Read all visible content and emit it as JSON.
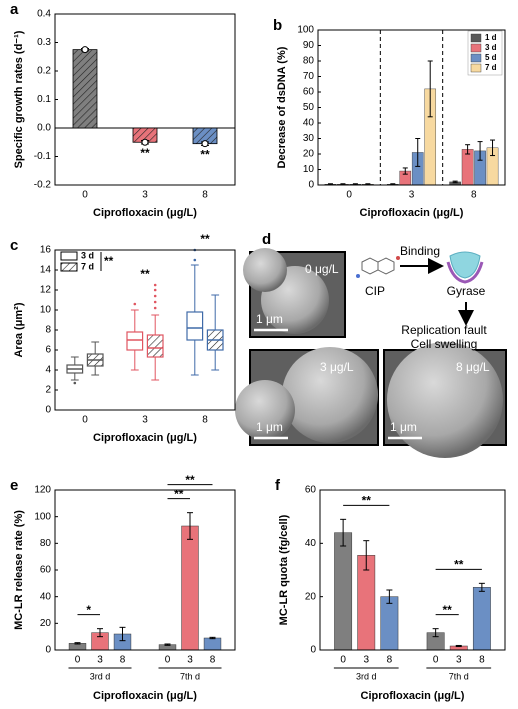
{
  "chart_data": [
    {
      "type": "bar",
      "panel": "a",
      "xlabel": "Ciprofloxacin (μg/L)",
      "ylabel": "Specific growth rates (d⁻¹)",
      "categories": [
        "0",
        "3",
        "8"
      ],
      "values": [
        0.275,
        -0.05,
        -0.055
      ],
      "errors": [
        0.004,
        0.006,
        0.006
      ],
      "colors": [
        "#7f7f7f",
        "#e8737a",
        "#6b8fc4"
      ],
      "hatch": true,
      "ylim": [
        -0.2,
        0.4
      ],
      "yticks": [
        -0.2,
        -0.1,
        {
          "value": 0,
          "label": "0.0"
        },
        0.1,
        0.2,
        0.3,
        0.4
      ],
      "annotations": [
        {
          "text": "**",
          "category": "3"
        },
        {
          "text": "**",
          "category": "8"
        }
      ]
    },
    {
      "type": "grouped_bar",
      "panel": "b",
      "xlabel": "Ciprofloxacin (μg/L)",
      "ylabel": "Decrease of dsDNA (%)",
      "categories": [
        "0",
        "3",
        "8"
      ],
      "dividers": true,
      "legend": "top-right",
      "series": [
        {
          "name": "1 d",
          "color": "#5a5a5a",
          "values": [
            0.5,
            0.5,
            2
          ],
          "errors": [
            0.3,
            0.3,
            0.5
          ]
        },
        {
          "name": "3 d",
          "color": "#e8737a",
          "values": [
            0.5,
            9,
            23
          ],
          "errors": [
            0.3,
            2,
            3
          ]
        },
        {
          "name": "5 d",
          "color": "#6b8fc4",
          "values": [
            0.5,
            21,
            22
          ],
          "errors": [
            0.3,
            9,
            6
          ]
        },
        {
          "name": "7 d",
          "color": "#f7d9a0",
          "values": [
            0.5,
            62,
            24
          ],
          "errors": [
            0.3,
            18,
            5
          ]
        }
      ],
      "ylim": [
        0,
        100
      ],
      "yticks": [
        0,
        10,
        20,
        30,
        40,
        50,
        60,
        70,
        80,
        90,
        100
      ]
    },
    {
      "type": "box",
      "panel": "c",
      "xlabel": "Ciprofloxacin (μg/L)",
      "ylabel": "Area (μm²)",
      "categories": [
        "0",
        "3",
        "8"
      ],
      "colors": [
        "#555555",
        "#e05560",
        "#3f6aa8"
      ],
      "legend": "top-left",
      "legend_note": "**",
      "series": [
        {
          "name": "3 d",
          "hatch": false,
          "boxes": [
            {
              "min": 3,
              "q1": 3.7,
              "median": 4.1,
              "q3": 4.5,
              "max": 5.3,
              "outliers": [
                2.7
              ]
            },
            {
              "min": 4,
              "q1": 6,
              "median": 7,
              "q3": 7.8,
              "max": 10,
              "outliers": [
                10.6
              ]
            },
            {
              "min": 3.5,
              "q1": 7,
              "median": 8.2,
              "q3": 9.8,
              "max": 14.5,
              "outliers": [
                15,
                16
              ]
            }
          ]
        },
        {
          "name": "7 d",
          "hatch": true,
          "boxes": [
            {
              "min": 3.5,
              "q1": 4.4,
              "median": 5,
              "q3": 5.6,
              "max": 6.8,
              "outliers": []
            },
            {
              "min": 3,
              "q1": 5.3,
              "median": 6.2,
              "q3": 7.5,
              "max": 9.5,
              "outliers": [
                10.2,
                10.8,
                11.4,
                12,
                12.5
              ]
            },
            {
              "min": 4,
              "q1": 6,
              "median": 7,
              "q3": 8,
              "max": 11.5,
              "outliers": []
            }
          ]
        }
      ],
      "ylim": [
        0,
        16
      ],
      "yticks": [
        0,
        2,
        4,
        6,
        8,
        10,
        12,
        14,
        16
      ],
      "annotations": [
        {
          "text": "**",
          "category": "3"
        },
        {
          "text": "**",
          "category": "8"
        }
      ]
    },
    {
      "type": "bar_groups",
      "panel": "e",
      "xlabel": "Ciprofloxacin (μg/L)",
      "ylabel": "MC-LR release rate (%)",
      "colors": [
        "#7f7f7f",
        "#e8737a",
        "#6b8fc4"
      ],
      "groups": [
        {
          "name": "3rd d",
          "categories": [
            "0",
            "3",
            "8"
          ],
          "values": [
            5,
            13,
            12
          ],
          "errors": [
            0.5,
            3,
            5
          ]
        },
        {
          "name": "7th d",
          "categories": [
            "0",
            "3",
            "8"
          ],
          "values": [
            4,
            93,
            9
          ],
          "errors": [
            0.5,
            10,
            0.5
          ]
        }
      ],
      "ylim": [
        0,
        120
      ],
      "yticks": [
        0,
        20,
        40,
        60,
        80,
        100,
        120
      ],
      "brackets": [
        {
          "group": "3rd d",
          "from": "0",
          "to": "3",
          "text": "*"
        },
        {
          "group": "7th d",
          "from": "0",
          "to": "3",
          "text": "**"
        },
        {
          "group": "7th d",
          "from": "0",
          "to": "8",
          "text": "**"
        }
      ]
    },
    {
      "type": "bar_groups",
      "panel": "f",
      "xlabel": "Ciprofloxacin (μg/L)",
      "ylabel": "MC-LR quota (fg/cell)",
      "colors": [
        "#7f7f7f",
        "#e8737a",
        "#6b8fc4"
      ],
      "groups": [
        {
          "name": "3rd d",
          "categories": [
            "0",
            "3",
            "8"
          ],
          "values": [
            44,
            35.5,
            20
          ],
          "errors": [
            5,
            5.5,
            2.5
          ]
        },
        {
          "name": "7th d",
          "categories": [
            "0",
            "3",
            "8"
          ],
          "values": [
            6.5,
            1.5,
            23.5
          ],
          "errors": [
            1.5,
            0.2,
            1.5
          ]
        }
      ],
      "ylim": [
        0,
        60
      ],
      "yticks": [
        0,
        20,
        40,
        60
      ],
      "brackets": [
        {
          "group": "3rd d",
          "from": "0",
          "to": "8",
          "text": "**"
        },
        {
          "group": "7th d",
          "from": "0",
          "to": "3",
          "text": "**"
        },
        {
          "group": "7th d",
          "from": "0",
          "to": "8",
          "text": "**"
        }
      ]
    }
  ],
  "diagram": {
    "label": "d",
    "images": [
      {
        "label": "0 μg/L",
        "scale": "1 μm"
      },
      {
        "label": "3 μg/L",
        "scale": "1 μm"
      },
      {
        "label": "8 μg/L",
        "scale": "1 μm"
      }
    ],
    "drug": "CIP",
    "action": "Binding",
    "target": "Gyrase",
    "outcome": [
      "Replication fault",
      "Cell swelling"
    ]
  }
}
